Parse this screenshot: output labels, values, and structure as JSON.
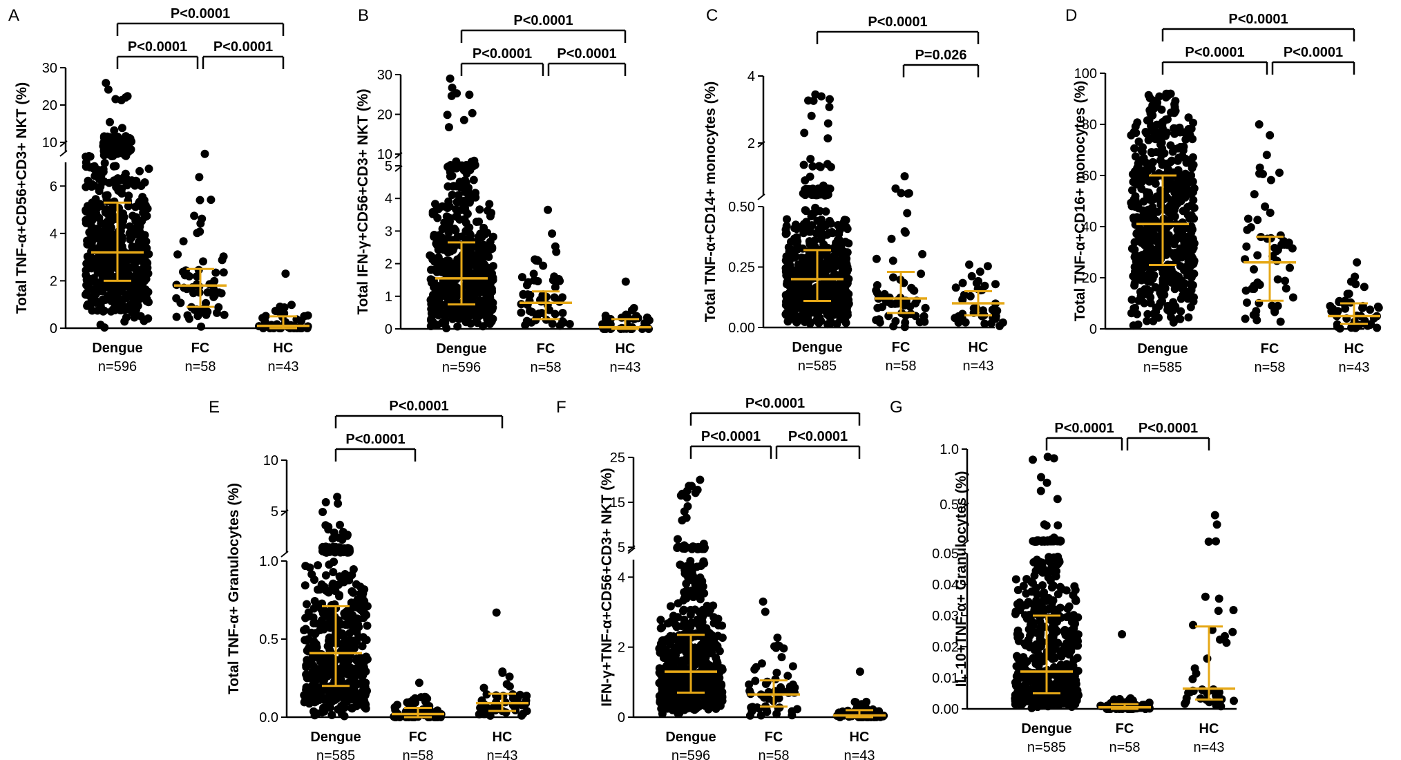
{
  "figure": {
    "background": "#ffffff",
    "dot_color": "#000000",
    "median_color": "#E6A817",
    "axis_color": "#000000"
  },
  "chart_data": [
    {
      "panel": "A",
      "type": "scatter",
      "ylabel": "Total TNF-α+CD56+CD3+ NKT (%)",
      "categories": [
        "Dengue",
        "FC",
        "HC"
      ],
      "n_labels": [
        "n=596",
        "n=58",
        "n=43"
      ],
      "median": [
        3.2,
        1.8,
        0.1
      ],
      "q1": [
        2.0,
        0.9,
        0.0
      ],
      "q3": [
        5.3,
        2.5,
        0.5
      ],
      "max": [
        25.9,
        7.6,
        2.3
      ],
      "min": [
        0,
        0,
        0
      ],
      "n_points": [
        596,
        58,
        43
      ],
      "ylim": [
        0,
        30
      ],
      "axis_break": [
        7,
        8
      ],
      "yticks": [
        0,
        2,
        4,
        6,
        10,
        20,
        30
      ],
      "comparisons": [
        {
          "from": 0,
          "to": 1,
          "label": "P<0.0001",
          "level": 0
        },
        {
          "from": 1,
          "to": 2,
          "label": "P<0.0001",
          "level": 0
        },
        {
          "from": 0,
          "to": 2,
          "label": "P<0.0001",
          "level": 1
        }
      ]
    },
    {
      "panel": "B",
      "type": "scatter",
      "ylabel": "Total IFN-γ+CD56+CD3+ NKT (%)",
      "categories": [
        "Dengue",
        "FC",
        "HC"
      ],
      "n_labels": [
        "n=596",
        "n=58",
        "n=43"
      ],
      "median": [
        1.55,
        0.8,
        0.05
      ],
      "q1": [
        0.75,
        0.3,
        0.0
      ],
      "q3": [
        2.65,
        1.15,
        0.3
      ],
      "max": [
        29,
        3.65,
        1.45
      ],
      "min": [
        0,
        0,
        0
      ],
      "n_points": [
        596,
        58,
        43
      ],
      "ylim": [
        0,
        30
      ],
      "axis_break": [
        5,
        6
      ],
      "yticks": [
        0,
        1,
        2,
        3,
        4,
        5,
        10,
        20,
        30
      ],
      "comparisons": [
        {
          "from": 0,
          "to": 1,
          "label": "P<0.0001",
          "level": 0
        },
        {
          "from": 1,
          "to": 2,
          "label": "P<0.0001",
          "level": 0
        },
        {
          "from": 0,
          "to": 2,
          "label": "P<0.0001",
          "level": 1
        }
      ]
    },
    {
      "panel": "C",
      "type": "scatter",
      "ylabel": "Total TNF-α+CD14+ monocytes (%)",
      "categories": [
        "Dengue",
        "FC",
        "HC"
      ],
      "n_labels": [
        "n=585",
        "n=58",
        "n=43"
      ],
      "median": [
        0.2,
        0.12,
        0.1
      ],
      "q1": [
        0.11,
        0.06,
        0.05
      ],
      "q3": [
        0.32,
        0.23,
        0.15
      ],
      "max": [
        3.45,
        1.05,
        0.26
      ],
      "min": [
        0,
        0,
        0
      ],
      "n_points": [
        585,
        58,
        43
      ],
      "ylim": [
        0,
        4
      ],
      "axis_break": [
        0.5,
        1
      ],
      "yticks": [
        0.0,
        0.25,
        0.5,
        2,
        4
      ],
      "comparisons": [
        {
          "from": 1,
          "to": 2,
          "label": "P=0.026",
          "level": 0
        },
        {
          "from": 0,
          "to": 2,
          "label": "P<0.0001",
          "level": 1
        }
      ]
    },
    {
      "panel": "D",
      "type": "scatter",
      "ylabel": "Total TNF-α+CD16+ monocytes (%)",
      "categories": [
        "Dengue",
        "FC",
        "HC"
      ],
      "n_labels": [
        "n=585",
        "n=58",
        "n=43"
      ],
      "median": [
        41,
        26,
        5
      ],
      "q1": [
        25,
        11,
        2
      ],
      "q3": [
        60,
        36,
        10
      ],
      "max": [
        92,
        80,
        26
      ],
      "min": [
        0,
        0,
        0
      ],
      "n_points": [
        585,
        58,
        43
      ],
      "ylim": [
        0,
        100
      ],
      "axis_break": null,
      "yticks": [
        0,
        20,
        40,
        60,
        80,
        100
      ],
      "comparisons": [
        {
          "from": 0,
          "to": 1,
          "label": "P<0.0001",
          "level": 0
        },
        {
          "from": 1,
          "to": 2,
          "label": "P<0.0001",
          "level": 0
        },
        {
          "from": 0,
          "to": 2,
          "label": "P<0.0001",
          "level": 1
        }
      ]
    },
    {
      "panel": "E",
      "type": "scatter",
      "ylabel": "Total TNF-α+ Granulocytes (%)",
      "categories": [
        "Dengue",
        "FC",
        "HC"
      ],
      "n_labels": [
        "n=585",
        "n=58",
        "n=43"
      ],
      "median": [
        0.41,
        0.02,
        0.09
      ],
      "q1": [
        0.2,
        0.0,
        0.04
      ],
      "q3": [
        0.71,
        0.06,
        0.15
      ],
      "max": [
        6.4,
        0.22,
        0.67
      ],
      "min": [
        0,
        0,
        0
      ],
      "n_points": [
        585,
        58,
        43
      ],
      "ylim": [
        0,
        10
      ],
      "axis_break": [
        1,
        2
      ],
      "yticks": [
        0.0,
        0.5,
        1.0,
        5,
        10
      ],
      "comparisons": [
        {
          "from": 0,
          "to": 1,
          "label": "P<0.0001",
          "level": 0
        },
        {
          "from": 0,
          "to": 2,
          "label": "P<0.0001",
          "level": 1
        }
      ]
    },
    {
      "panel": "F",
      "type": "scatter",
      "ylabel": "IFN-γ+TNF-α+CD56+CD3+ NKT (%)",
      "categories": [
        "Dengue",
        "FC",
        "HC"
      ],
      "n_labels": [
        "n=596",
        "n=58",
        "n=43"
      ],
      "median": [
        1.3,
        0.65,
        0.05
      ],
      "q1": [
        0.7,
        0.3,
        0.0
      ],
      "q3": [
        2.35,
        1.05,
        0.2
      ],
      "max": [
        20,
        3.3,
        1.3
      ],
      "min": [
        0,
        0,
        0
      ],
      "n_points": [
        596,
        58,
        43
      ],
      "ylim": [
        0,
        25
      ],
      "axis_break": [
        4.5,
        5
      ],
      "yticks": [
        0,
        2,
        4,
        5,
        15,
        25
      ],
      "comparisons": [
        {
          "from": 0,
          "to": 1,
          "label": "P<0.0001",
          "level": 0
        },
        {
          "from": 1,
          "to": 2,
          "label": "P<0.0001",
          "level": 0
        },
        {
          "from": 0,
          "to": 2,
          "label": "P<0.0001",
          "level": 1
        }
      ]
    },
    {
      "panel": "G",
      "type": "scatter",
      "ylabel": "IL-10+TNF-α+ Granulocytes (%)",
      "categories": [
        "Dengue",
        "FC",
        "HC"
      ],
      "n_labels": [
        "n=585",
        "n=58",
        "n=43"
      ],
      "median": [
        0.012,
        0.0005,
        0.0065
      ],
      "q1": [
        0.005,
        0.0,
        0.003
      ],
      "q3": [
        0.03,
        0.0015,
        0.0265
      ],
      "max": [
        0.93,
        0.024,
        0.37
      ],
      "min": [
        0,
        0,
        0
      ],
      "n_points": [
        585,
        58,
        43
      ],
      "ylim": [
        0,
        1.0
      ],
      "axis_break": [
        0.05,
        0.06
      ],
      "yticks": [
        0.0,
        0.01,
        0.02,
        0.03,
        0.04,
        0.05,
        0.5,
        1.0
      ],
      "comparisons": [
        {
          "from": 0,
          "to": 1,
          "label": "P<0.0001",
          "level": 0
        },
        {
          "from": 1,
          "to": 2,
          "label": "P<0.0001",
          "level": 0
        }
      ]
    }
  ]
}
